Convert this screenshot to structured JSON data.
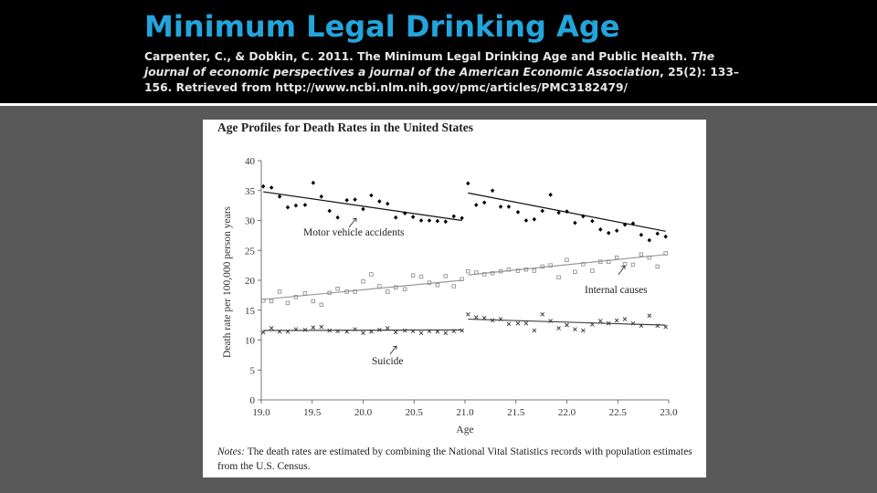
{
  "slide": {
    "title": "Minimum Legal Drinking Age",
    "citation_authors": "Carpenter, C., & Dobkin, C. 2011. The Minimum Legal Drinking Age and Public Health. ",
    "citation_journal": "The journal of economic perspectives  a journal of the American Economic Association",
    "citation_rest": ", 25(2): 133–156. Retrieved from http://www.ncbi.nlm.nih.gov/pmc/articles/PMC3182479/"
  },
  "colors": {
    "header_bg": "#000000",
    "title": "#23a5dc",
    "slide_bg": "#595959",
    "motor_series": "#000000",
    "internal_series": "#7a7a7a",
    "suicide_series": "#333333"
  },
  "chart_data": {
    "type": "scatter",
    "title": "Age Profiles for Death Rates in the United States",
    "xlabel": "Age",
    "ylabel": "Death rate per 100,000 person years",
    "xlim": [
      19.0,
      23.0
    ],
    "ylim": [
      0,
      40
    ],
    "x_ticks": [
      "19.0",
      "19.5",
      "20.0",
      "20.5",
      "21.0",
      "21.5",
      "22.0",
      "22.5",
      "23.0"
    ],
    "y_ticks": [
      "0",
      "5",
      "10",
      "15",
      "20",
      "25",
      "30",
      "35",
      "40"
    ],
    "grid": false,
    "cutoff_age": 21.0,
    "series": [
      {
        "name": "Motor vehicle accidents",
        "marker": "diamond",
        "x": [
          19.02,
          19.1,
          19.18,
          19.26,
          19.34,
          19.43,
          19.51,
          19.59,
          19.67,
          19.75,
          19.84,
          19.92,
          20.0,
          20.08,
          20.16,
          20.24,
          20.32,
          20.41,
          20.49,
          20.57,
          20.65,
          20.73,
          20.81,
          20.89,
          20.97,
          21.03,
          21.11,
          21.19,
          21.27,
          21.35,
          21.43,
          21.52,
          21.6,
          21.68,
          21.76,
          21.84,
          21.92,
          22.0,
          22.08,
          22.16,
          22.25,
          22.33,
          22.41,
          22.49,
          22.57,
          22.65,
          22.73,
          22.81,
          22.89,
          22.97
        ],
        "y": [
          35.7,
          35.5,
          34.0,
          32.2,
          32.5,
          32.6,
          36.3,
          34.0,
          31.6,
          30.5,
          33.4,
          33.5,
          31.9,
          34.2,
          33.2,
          32.8,
          30.5,
          31.2,
          30.6,
          30.0,
          30.0,
          29.9,
          29.8,
          30.7,
          30.4,
          36.2,
          32.6,
          33.0,
          35.0,
          32.3,
          32.3,
          31.4,
          30.0,
          30.2,
          31.6,
          34.3,
          31.3,
          31.5,
          29.6,
          30.7,
          29.9,
          28.5,
          27.9,
          28.3,
          29.3,
          29.5,
          27.6,
          26.7,
          27.8,
          27.3
        ],
        "fit_pre": [
          [
            19.02,
            34.8
          ],
          [
            20.97,
            30.0
          ]
        ],
        "fit_post": [
          [
            21.03,
            34.6
          ],
          [
            22.97,
            28.2
          ]
        ],
        "label": "Motor vehicle accidents"
      },
      {
        "name": "Internal causes",
        "marker": "square",
        "x": [
          19.02,
          19.1,
          19.18,
          19.26,
          19.34,
          19.43,
          19.51,
          19.59,
          19.67,
          19.75,
          19.84,
          19.92,
          20.0,
          20.08,
          20.16,
          20.24,
          20.32,
          20.41,
          20.49,
          20.57,
          20.65,
          20.73,
          20.81,
          20.89,
          20.97,
          21.03,
          21.11,
          21.19,
          21.27,
          21.35,
          21.43,
          21.52,
          21.6,
          21.68,
          21.76,
          21.84,
          21.92,
          22.0,
          22.08,
          22.16,
          22.25,
          22.33,
          22.41,
          22.49,
          22.57,
          22.65,
          22.73,
          22.81,
          22.89,
          22.97
        ],
        "y": [
          16.6,
          16.5,
          18.1,
          16.2,
          17.2,
          17.8,
          16.5,
          15.9,
          17.9,
          18.6,
          18.1,
          18.1,
          19.8,
          21.0,
          19.0,
          18.1,
          18.8,
          18.5,
          20.8,
          20.6,
          19.6,
          19.2,
          20.7,
          19.0,
          20.2,
          21.5,
          21.3,
          21.0,
          21.2,
          21.5,
          21.8,
          21.6,
          21.8,
          21.6,
          22.3,
          22.5,
          20.5,
          23.4,
          21.4,
          22.7,
          21.6,
          23.1,
          23.1,
          23.8,
          22.7,
          22.6,
          24.3,
          23.8,
          22.3,
          24.5
        ],
        "fit_pre": [
          [
            19.02,
            16.8
          ],
          [
            20.97,
            20.0
          ]
        ],
        "fit_post": [
          [
            21.03,
            20.9
          ],
          [
            22.97,
            24.3
          ]
        ],
        "label": "Internal causes"
      },
      {
        "name": "Suicide",
        "marker": "x",
        "x": [
          19.02,
          19.1,
          19.18,
          19.26,
          19.34,
          19.43,
          19.51,
          19.59,
          19.67,
          19.75,
          19.84,
          19.92,
          20.0,
          20.08,
          20.16,
          20.24,
          20.32,
          20.41,
          20.49,
          20.57,
          20.65,
          20.73,
          20.81,
          20.89,
          20.97,
          21.03,
          21.11,
          21.19,
          21.27,
          21.35,
          21.43,
          21.52,
          21.6,
          21.68,
          21.76,
          21.84,
          21.92,
          22.0,
          22.08,
          22.16,
          22.25,
          22.33,
          22.41,
          22.49,
          22.57,
          22.65,
          22.73,
          22.81,
          22.89,
          22.97
        ],
        "y": [
          11.3,
          12.0,
          11.4,
          11.4,
          11.8,
          11.7,
          12.1,
          12.2,
          11.6,
          11.5,
          11.4,
          11.8,
          11.2,
          11.4,
          11.7,
          12.0,
          11.3,
          11.6,
          11.5,
          11.2,
          11.5,
          11.4,
          11.2,
          11.5,
          11.6,
          14.3,
          13.8,
          13.7,
          13.3,
          13.5,
          12.7,
          12.8,
          12.8,
          11.6,
          14.3,
          13.2,
          12.0,
          12.5,
          11.8,
          11.6,
          12.6,
          13.2,
          12.8,
          13.3,
          13.5,
          12.8,
          12.4,
          14.1,
          12.4,
          12.2
        ],
        "fit_pre": [
          [
            19.02,
            11.6
          ],
          [
            20.97,
            11.7
          ]
        ],
        "fit_post": [
          [
            21.03,
            13.5
          ],
          [
            22.97,
            12.5
          ]
        ],
        "label": "Suicide"
      }
    ],
    "notes_lead": "Notes:",
    "notes_text": " The death rates are estimated by combining the National Vital Statistics records with population estimates from the U.S. Census."
  }
}
